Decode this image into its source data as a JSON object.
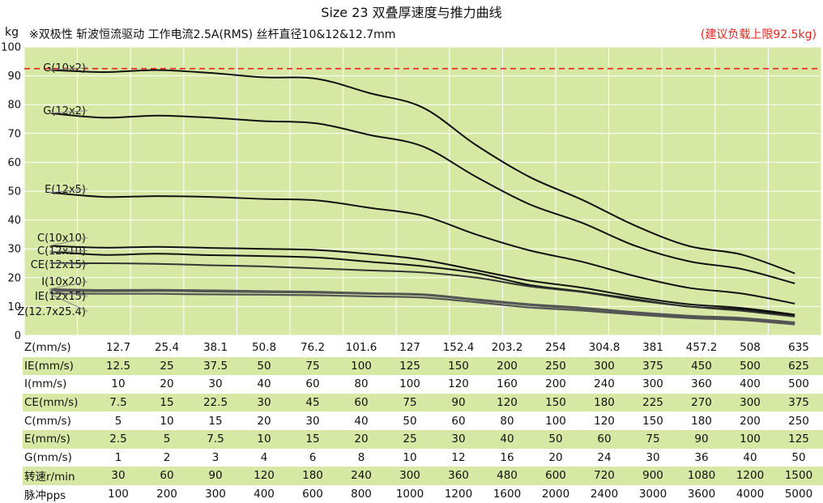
{
  "title": "Size 23 双叠厚速度与推力曲线",
  "unit": "kg",
  "subtitle": "※双极性 斩波恒流驱动 工作电流2.5A(RMS) 丝杆直径10&12&12.7mm",
  "limit_note": "(建议负载上限92.5kg)",
  "colors": {
    "plot_bg": "#d6e8a3",
    "curve": "#111111",
    "curve_dark": "#333333",
    "curve_gray": "#555555",
    "limit": "#e8231c",
    "grid": "#ffffff",
    "band": "#d6e8a3"
  },
  "chart_data": {
    "type": "line",
    "ylim": [
      0,
      100
    ],
    "yticks": [
      0,
      10,
      20,
      30,
      40,
      50,
      60,
      70,
      80,
      90,
      100
    ],
    "grid": true,
    "limit_line": 92.5,
    "series": [
      {
        "name": "G(10x2)",
        "values": [
          92,
          91.3,
          92,
          91,
          89.5,
          89,
          84,
          79,
          66,
          55,
          47,
          38,
          31,
          28,
          21.5
        ]
      },
      {
        "name": "G(12x2)",
        "values": [
          77,
          75.5,
          76.2,
          75.5,
          74.3,
          73.5,
          69.5,
          65.5,
          55,
          45.5,
          39,
          31,
          25.7,
          23,
          18
        ]
      },
      {
        "name": "E(12x5)",
        "values": [
          49.5,
          48,
          48.3,
          48,
          47.3,
          46.8,
          44.2,
          41.5,
          35,
          29.5,
          25.5,
          20.5,
          16.5,
          14.5,
          11
        ]
      },
      {
        "name": "C(10x10)",
        "values": [
          31,
          30.4,
          30.7,
          30.3,
          30,
          29.6,
          28.2,
          26.2,
          22.6,
          19,
          16.5,
          13.3,
          10.8,
          9.5,
          7.2
        ]
      },
      {
        "name": "C(12x10)",
        "values": [
          29,
          27.9,
          28.3,
          27.8,
          27.5,
          27,
          25.5,
          24,
          21.6,
          17.5,
          15.2,
          12.5,
          10,
          9,
          6.8
        ]
      },
      {
        "name": "CE(12x15)",
        "values": [
          25,
          25,
          24.8,
          24.3,
          23.9,
          23.2,
          22.5,
          21.8,
          20,
          17,
          15,
          12.2,
          10,
          8.5,
          6.5
        ]
      },
      {
        "name": "I(10x20)",
        "values": [
          16,
          15.7,
          15.8,
          15.6,
          15.3,
          15.1,
          14.6,
          14.2,
          12.5,
          10.8,
          9.6,
          8,
          6.8,
          6,
          4.5
        ]
      },
      {
        "name": "IE(12x15)",
        "values": [
          15.5,
          15.3,
          15.4,
          15.2,
          15,
          14.8,
          14.4,
          14,
          12.2,
          10.5,
          9.2,
          7.7,
          6.5,
          5.8,
          4.2
        ]
      },
      {
        "name": "Z(12.7x25.4)",
        "values": [
          14.5,
          14.4,
          14.4,
          14.2,
          14.1,
          13.9,
          13.5,
          13.1,
          11.5,
          9.7,
          8.6,
          7.2,
          6,
          5.3,
          3.8
        ]
      }
    ]
  },
  "table": [
    {
      "label": "Z(mm/s)",
      "values": [
        "12.7",
        "25.4",
        "38.1",
        "50.8",
        "76.2",
        "101.6",
        "127",
        "152.4",
        "203.2",
        "254",
        "304.8",
        "381",
        "457.2",
        "508",
        "635"
      ]
    },
    {
      "label": "IE(mm/s)",
      "values": [
        "12.5",
        "25",
        "37.5",
        "50",
        "75",
        "100",
        "125",
        "150",
        "200",
        "250",
        "300",
        "375",
        "450",
        "500",
        "625"
      ]
    },
    {
      "label": "I(mm/s)",
      "values": [
        "10",
        "20",
        "30",
        "40",
        "60",
        "80",
        "100",
        "120",
        "160",
        "200",
        "240",
        "300",
        "360",
        "400",
        "500"
      ]
    },
    {
      "label": "CE(mm/s)",
      "values": [
        "7.5",
        "15",
        "22.5",
        "30",
        "45",
        "60",
        "75",
        "90",
        "120",
        "150",
        "180",
        "225",
        "270",
        "300",
        "375"
      ]
    },
    {
      "label": "C(mm/s)",
      "values": [
        "5",
        "10",
        "15",
        "20",
        "30",
        "40",
        "50",
        "60",
        "80",
        "100",
        "120",
        "150",
        "180",
        "200",
        "250"
      ]
    },
    {
      "label": "E(mm/s)",
      "values": [
        "2.5",
        "5",
        "7.5",
        "10",
        "15",
        "20",
        "25",
        "30",
        "40",
        "50",
        "60",
        "75",
        "90",
        "100",
        "125"
      ]
    },
    {
      "label": "G(mm/s)",
      "values": [
        "1",
        "2",
        "3",
        "4",
        "6",
        "8",
        "10",
        "12",
        "16",
        "20",
        "24",
        "30",
        "36",
        "40",
        "50"
      ]
    },
    {
      "label": "转速r/min",
      "values": [
        "30",
        "60",
        "90",
        "120",
        "180",
        "240",
        "300",
        "360",
        "480",
        "600",
        "720",
        "900",
        "1080",
        "1200",
        "1500"
      ]
    },
    {
      "label": "脉冲pps",
      "values": [
        "100",
        "200",
        "300",
        "400",
        "600",
        "800",
        "1000",
        "1200",
        "1600",
        "2000",
        "2400",
        "3000",
        "3600",
        "4000",
        "5000"
      ]
    }
  ]
}
